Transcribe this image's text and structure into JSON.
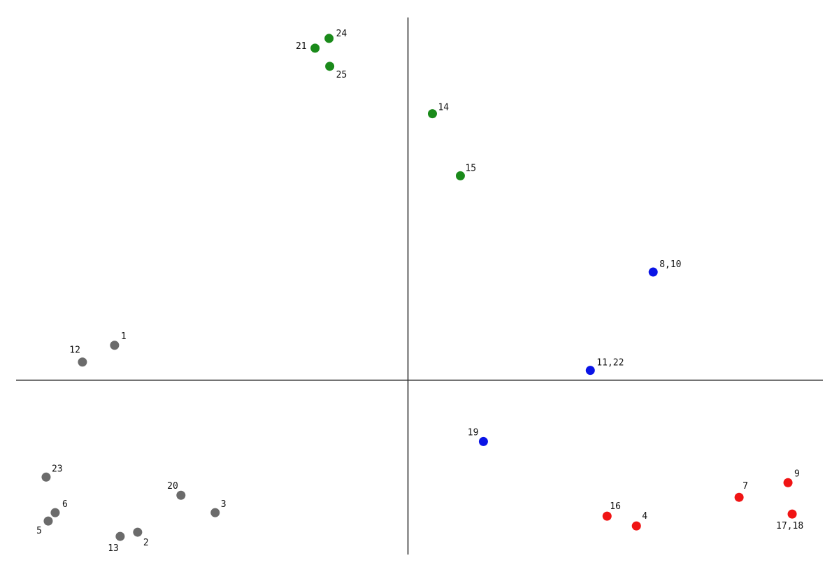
{
  "chart_data": {
    "type": "scatter",
    "title": "",
    "xlabel": "",
    "ylabel": "",
    "xlim": [
      -5.61,
      5.94
    ],
    "ylim": [
      -2.5,
      5.2
    ],
    "grid": false,
    "axes_through_origin": true,
    "points": [
      {
        "label": "1",
        "x": -4.2,
        "y": 0.5,
        "group": "gray"
      },
      {
        "label": "12",
        "x": -4.66,
        "y": 0.26,
        "group": "gray"
      },
      {
        "label": "23",
        "x": -5.18,
        "y": -1.39,
        "group": "gray"
      },
      {
        "label": "6",
        "x": -5.05,
        "y": -1.9,
        "group": "gray"
      },
      {
        "label": "5",
        "x": -5.15,
        "y": -2.02,
        "group": "gray"
      },
      {
        "label": "20",
        "x": -3.25,
        "y": -1.65,
        "group": "gray"
      },
      {
        "label": "3",
        "x": -2.76,
        "y": -1.9,
        "group": "gray"
      },
      {
        "label": "13",
        "x": -4.12,
        "y": -2.24,
        "group": "gray"
      },
      {
        "label": "2",
        "x": -3.87,
        "y": -2.18,
        "group": "gray"
      },
      {
        "label": "21",
        "x": -1.33,
        "y": 4.76,
        "group": "green"
      },
      {
        "label": "24",
        "x": -1.13,
        "y": 4.9,
        "group": "green"
      },
      {
        "label": "25",
        "x": -1.12,
        "y": 4.5,
        "group": "green"
      },
      {
        "label": "14",
        "x": 0.35,
        "y": 3.82,
        "group": "green"
      },
      {
        "label": "15",
        "x": 0.75,
        "y": 2.93,
        "group": "green"
      },
      {
        "label": "8,10",
        "x": 3.51,
        "y": 1.55,
        "group": "blue"
      },
      {
        "label": "11,22",
        "x": 2.61,
        "y": 0.14,
        "group": "blue"
      },
      {
        "label": "19",
        "x": 1.08,
        "y": -0.88,
        "group": "blue"
      },
      {
        "label": "16",
        "x": 2.85,
        "y": -1.95,
        "group": "red"
      },
      {
        "label": "4",
        "x": 3.27,
        "y": -2.09,
        "group": "red"
      },
      {
        "label": "7",
        "x": 4.74,
        "y": -1.68,
        "group": "red"
      },
      {
        "label": "9",
        "x": 5.44,
        "y": -1.47,
        "group": "red"
      },
      {
        "label": "17,18",
        "x": 5.5,
        "y": -1.92,
        "group": "red"
      }
    ],
    "group_colors": {
      "gray": "#6b6b6b",
      "green": "#1a8a1a",
      "blue": "#0a14e6",
      "red": "#f01414"
    }
  }
}
